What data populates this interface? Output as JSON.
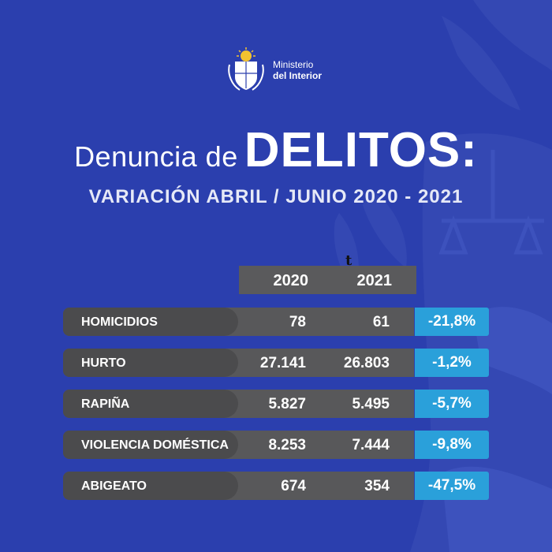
{
  "logo": {
    "line1": "Ministerio",
    "line2": "del Interior"
  },
  "title": {
    "pre": "Denuncia de",
    "main": "DELITOS:",
    "subtitle": "VARIACIÓN ABRIL / JUNIO 2020 - 2021"
  },
  "stray_mark": "t",
  "table": {
    "years": [
      "2020",
      "2021"
    ],
    "rows": [
      {
        "label": "HOMICIDIOS",
        "v2020": "78",
        "v2021": "61",
        "change": "-21,8%"
      },
      {
        "label": "HURTO",
        "v2020": "27.141",
        "v2021": "26.803",
        "change": "-1,2%"
      },
      {
        "label": "RAPIÑA",
        "v2020": "5.827",
        "v2021": "5.495",
        "change": "-5,7%"
      },
      {
        "label": "VIOLENCIA DOMÉSTICA",
        "v2020": "8.253",
        "v2021": "7.444",
        "change": "-9,8%"
      },
      {
        "label": "ABIGEATO",
        "v2020": "674",
        "v2021": "354",
        "change": "-47,5%"
      }
    ]
  },
  "colors": {
    "background": "#2b3fae",
    "row_gray": "#58585a",
    "label_pill": "#4b4b4d",
    "change_cell": "#2aa0da"
  }
}
